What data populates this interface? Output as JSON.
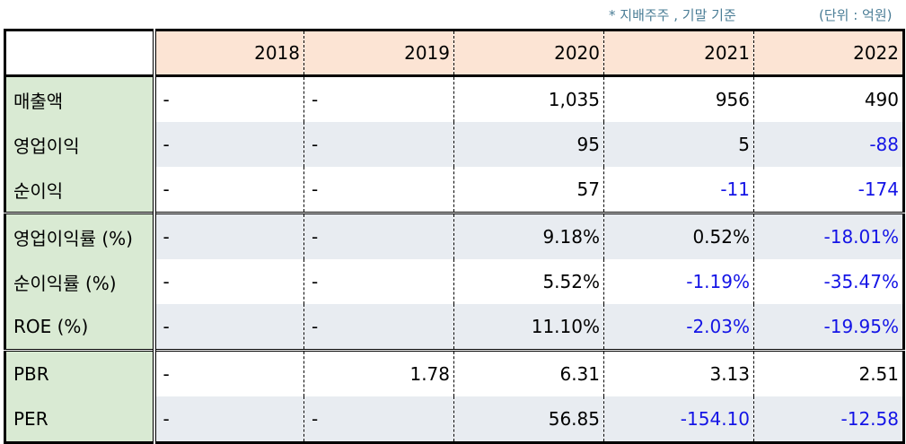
{
  "notes": {
    "basis": "* 지배주주 , 기말 기준",
    "unit": "(단위 : 억원)"
  },
  "colors": {
    "header_bg": "#fce4d4",
    "label_bg": "#d9ead3",
    "shade_bg": "#e8ecf1",
    "negative": "#1414e6"
  },
  "table": {
    "years": [
      "2018",
      "2019",
      "2020",
      "2021",
      "2022"
    ],
    "rows": [
      {
        "label": "매출액",
        "values": [
          "-",
          "-",
          "1,035",
          "956",
          "490"
        ]
      },
      {
        "label": "영업이익",
        "values": [
          "-",
          "-",
          "95",
          "5",
          "-88"
        ]
      },
      {
        "label": "순이익",
        "values": [
          "-",
          "-",
          "57",
          "-11",
          "-174"
        ]
      },
      {
        "label": "영업이익률 (%)",
        "values": [
          "-",
          "-",
          "9.18%",
          "0.52%",
          "-18.01%"
        ]
      },
      {
        "label": "순이익률 (%)",
        "values": [
          "-",
          "-",
          "5.52%",
          "-1.19%",
          "-35.47%"
        ]
      },
      {
        "label": "ROE (%)",
        "values": [
          "-",
          "-",
          "11.10%",
          "-2.03%",
          "-19.95%"
        ]
      },
      {
        "label": "PBR",
        "values": [
          "-",
          "1.78",
          "6.31",
          "3.13",
          "2.51"
        ]
      },
      {
        "label": "PER",
        "values": [
          "-",
          "-",
          "56.85",
          "-154.10",
          "-12.58"
        ]
      }
    ]
  }
}
